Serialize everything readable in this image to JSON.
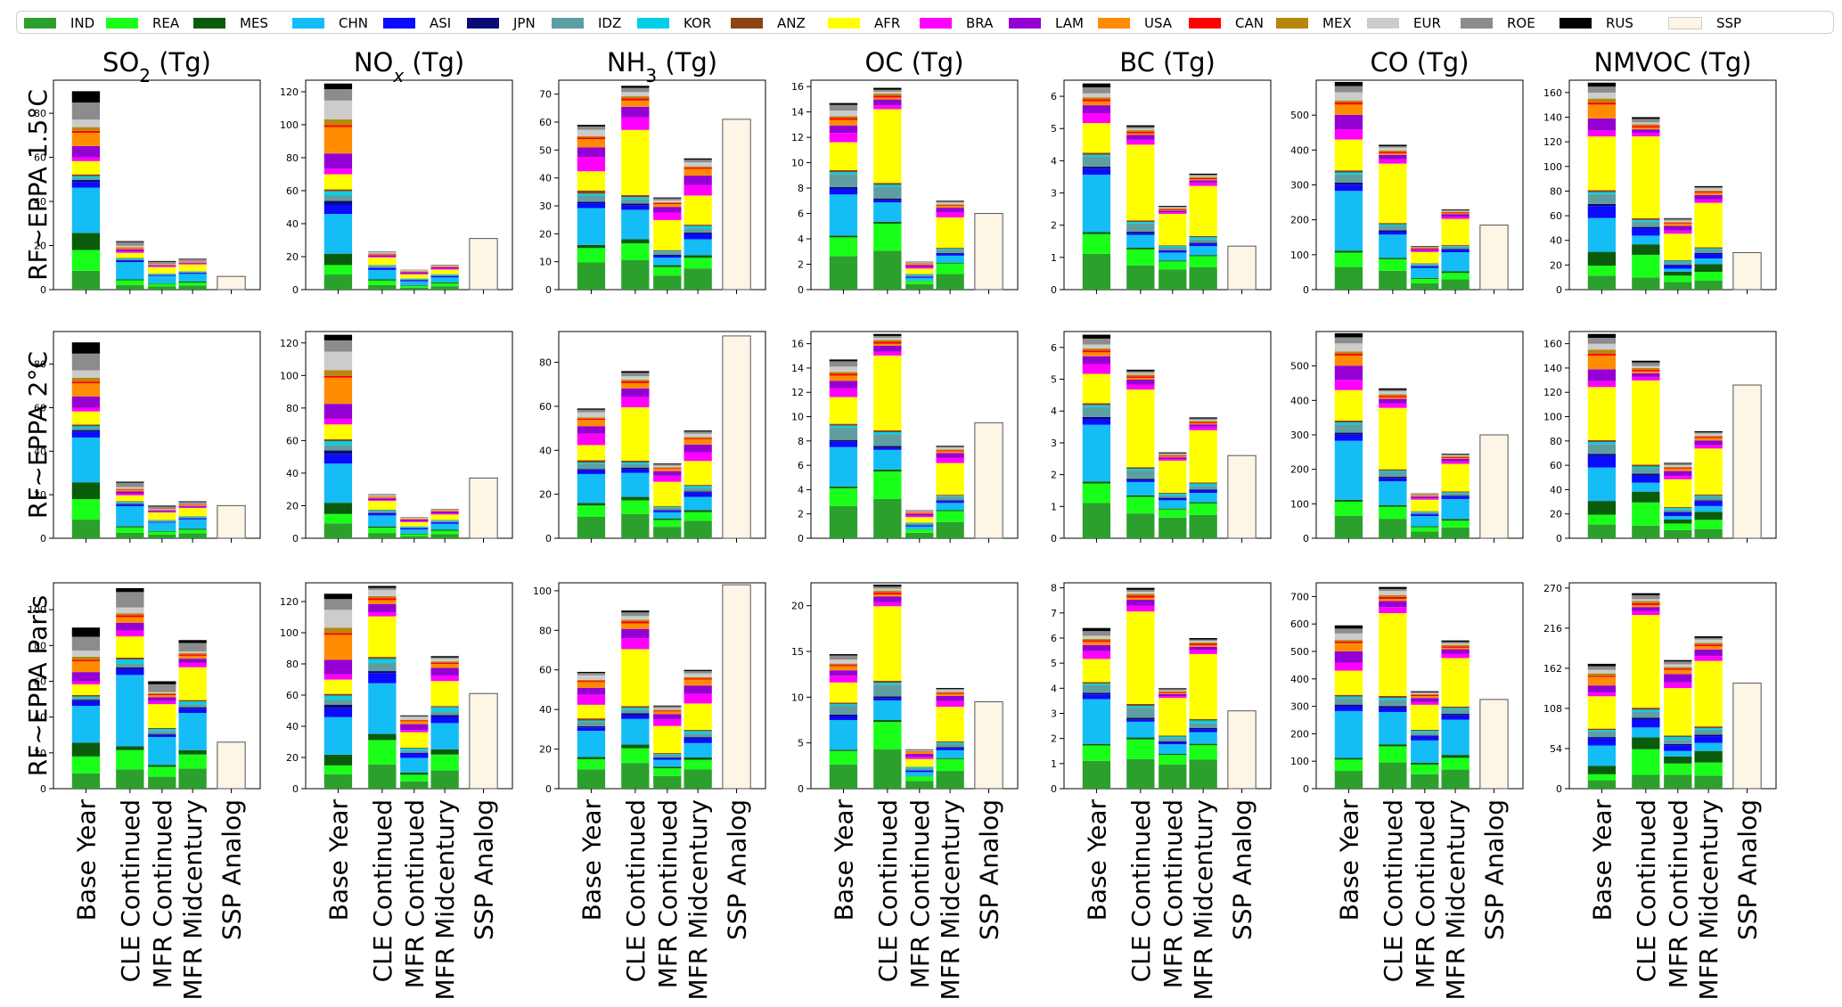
{
  "regions": [
    {
      "code": "IND",
      "color": "#2ca02c"
    },
    {
      "code": "REA",
      "color": "#19ff19"
    },
    {
      "code": "MES",
      "color": "#0a5c0a"
    },
    {
      "code": "CHN",
      "color": "#14bdf5"
    },
    {
      "code": "ASI",
      "color": "#0a0aff"
    },
    {
      "code": "JPN",
      "color": "#0a0a78"
    },
    {
      "code": "IDZ",
      "color": "#5f9ea0"
    },
    {
      "code": "KOR",
      "color": "#00cfe8"
    },
    {
      "code": "ANZ",
      "color": "#8b4513"
    },
    {
      "code": "AFR",
      "color": "#ffff00"
    },
    {
      "code": "BRA",
      "color": "#ff00ff"
    },
    {
      "code": "LAM",
      "color": "#9400d3"
    },
    {
      "code": "USA",
      "color": "#ff8c00"
    },
    {
      "code": "CAN",
      "color": "#ff0000"
    },
    {
      "code": "MEX",
      "color": "#b8860b"
    },
    {
      "code": "EUR",
      "color": "#cccccc"
    },
    {
      "code": "ROE",
      "color": "#8c8c8c"
    },
    {
      "code": "RUS",
      "color": "#000000"
    },
    {
      "code": "SSP",
      "color": "#fdf5e6"
    }
  ],
  "categories": [
    "Base Year",
    "CLE Continued",
    "MFR Continued",
    "MFR Midcentury",
    "SSP Analog"
  ],
  "row_labels": [
    "RF~EPPA 1.5°C",
    "RF~EPPA 2°C",
    "RF~EPPA Paris"
  ],
  "pollutants": [
    {
      "id": "so2",
      "name": "SO",
      "sub": "2",
      "unit": " (Tg)"
    },
    {
      "id": "nox",
      "name": "NO",
      "sub": "x",
      "unit": " (Tg)"
    },
    {
      "id": "nh3",
      "name": "NH",
      "sub": "3",
      "unit": " (Tg)"
    },
    {
      "id": "oc",
      "name": "OC",
      "sub": "",
      "unit": " (Tg)"
    },
    {
      "id": "bc",
      "name": "BC",
      "sub": "",
      "unit": " (Tg)"
    },
    {
      "id": "co",
      "name": "CO",
      "sub": "",
      "unit": " (Tg)"
    },
    {
      "id": "nmvoc",
      "name": "NMVOC",
      "sub": "",
      "unit": " (Tg)"
    }
  ],
  "chart_data": {
    "type": "bar",
    "stacked": true,
    "legend_position": "top",
    "categories": [
      "Base Year",
      "CLE Continued",
      "MFR Continued",
      "MFR Midcentury",
      "SSP Analog"
    ],
    "series_order": [
      "IND",
      "REA",
      "MES",
      "CHN",
      "ASI",
      "JPN",
      "IDZ",
      "KOR",
      "ANZ",
      "AFR",
      "BRA",
      "LAM",
      "USA",
      "CAN",
      "MEX",
      "EUR",
      "ROE",
      "RUS"
    ],
    "panels": [
      [
        {
          "ylim": [
            0,
            95
          ],
          "yticks": [
            0,
            20,
            40,
            60,
            80
          ],
          "totals": [
            90,
            22,
            13,
            14
          ],
          "ssp": 6
        },
        {
          "ylim": [
            0,
            127
          ],
          "yticks": [
            0,
            20,
            40,
            60,
            80,
            100,
            120
          ],
          "totals": [
            125,
            23,
            12,
            15
          ],
          "ssp": 31
        },
        {
          "ylim": [
            0,
            75
          ],
          "yticks": [
            0,
            10,
            20,
            30,
            40,
            50,
            60,
            70
          ],
          "totals": [
            59,
            73,
            33,
            47
          ],
          "ssp": 61
        },
        {
          "ylim": [
            0,
            16.5
          ],
          "yticks": [
            0,
            2,
            4,
            6,
            8,
            10,
            12,
            14,
            16
          ],
          "totals": [
            14.7,
            15.9,
            2.2,
            7.0
          ],
          "ssp": 6
        },
        {
          "ylim": [
            0,
            6.5
          ],
          "yticks": [
            0,
            1,
            2,
            3,
            4,
            5,
            6
          ],
          "totals": [
            6.4,
            5.1,
            2.6,
            3.6
          ],
          "ssp": 1.35
        },
        {
          "ylim": [
            0,
            600
          ],
          "yticks": [
            0,
            100,
            200,
            300,
            400,
            500
          ],
          "totals": [
            595,
            415,
            125,
            230
          ],
          "ssp": 185
        },
        {
          "ylim": [
            0,
            170
          ],
          "yticks": [
            0,
            20,
            40,
            60,
            80,
            100,
            120,
            140,
            160
          ],
          "totals": [
            168,
            140,
            58,
            84
          ],
          "ssp": 30
        }
      ],
      [
        {
          "ylim": [
            0,
            95
          ],
          "yticks": [
            0,
            20,
            40,
            60,
            80
          ],
          "totals": [
            90,
            26,
            15,
            17
          ],
          "ssp": 15
        },
        {
          "ylim": [
            0,
            127
          ],
          "yticks": [
            0,
            20,
            40,
            60,
            80,
            100,
            120
          ],
          "totals": [
            125,
            27,
            13,
            18
          ],
          "ssp": 37
        },
        {
          "ylim": [
            0,
            94
          ],
          "yticks": [
            0,
            20,
            40,
            60,
            80
          ],
          "totals": [
            59,
            76,
            34,
            49
          ],
          "ssp": 92
        },
        {
          "ylim": [
            0,
            17
          ],
          "yticks": [
            0,
            2,
            4,
            6,
            8,
            10,
            12,
            14,
            16
          ],
          "totals": [
            14.7,
            16.8,
            2.3,
            7.6
          ],
          "ssp": 9.5
        },
        {
          "ylim": [
            0,
            6.5
          ],
          "yticks": [
            0,
            1,
            2,
            3,
            4,
            5,
            6
          ],
          "totals": [
            6.4,
            5.3,
            2.7,
            3.8
          ],
          "ssp": 2.6
        },
        {
          "ylim": [
            0,
            600
          ],
          "yticks": [
            0,
            100,
            200,
            300,
            400,
            500
          ],
          "totals": [
            595,
            435,
            130,
            245
          ],
          "ssp": 300
        },
        {
          "ylim": [
            0,
            170
          ],
          "yticks": [
            0,
            20,
            40,
            60,
            80,
            100,
            120,
            140,
            160
          ],
          "totals": [
            168,
            146,
            62,
            88
          ],
          "ssp": 126
        }
      ],
      [
        {
          "ylim": [
            0,
            115
          ],
          "yticks": [
            0,
            20,
            40,
            60,
            80,
            100
          ],
          "totals": [
            90,
            112,
            60,
            83
          ],
          "ssp": 26
        },
        {
          "ylim": [
            0,
            132
          ],
          "yticks": [
            0,
            20,
            40,
            60,
            80,
            100,
            120
          ],
          "totals": [
            125,
            130,
            47,
            85
          ],
          "ssp": 61
        },
        {
          "ylim": [
            0,
            104
          ],
          "yticks": [
            0,
            20,
            40,
            60,
            80,
            100
          ],
          "totals": [
            59,
            90,
            42,
            60
          ],
          "ssp": 103
        },
        {
          "ylim": [
            0,
            22.5
          ],
          "yticks": [
            0,
            5,
            10,
            15,
            20
          ],
          "totals": [
            14.7,
            22.3,
            4.3,
            11.0
          ],
          "ssp": 9.5
        },
        {
          "ylim": [
            0,
            8.2
          ],
          "yticks": [
            0,
            1,
            2,
            3,
            4,
            5,
            6,
            7,
            8
          ],
          "totals": [
            6.4,
            8.0,
            4.0,
            6.0
          ],
          "ssp": 3.1
        },
        {
          "ylim": [
            0,
            750
          ],
          "yticks": [
            0,
            100,
            200,
            300,
            400,
            500,
            600,
            700
          ],
          "totals": [
            595,
            735,
            355,
            540
          ],
          "ssp": 325
        },
        {
          "ylim": [
            0,
            277
          ],
          "yticks": [
            0,
            54,
            108,
            162,
            216,
            270
          ],
          "totals": [
            168,
            263,
            173,
            205
          ],
          "ssp": 142
        }
      ]
    ],
    "shares": {
      "so2": {
        "base": [
          10,
          11,
          9,
          24,
          3,
          1,
          1,
          1,
          1,
          7,
          2,
          6,
          7,
          1,
          2,
          4,
          9,
          6
        ],
        "cle": [
          10,
          10,
          2,
          37,
          3,
          1,
          2,
          2,
          1,
          11,
          3,
          4,
          3,
          1,
          1,
          3,
          8,
          2
        ],
        "mfr": [
          12,
          10,
          2,
          28,
          2,
          1,
          3,
          2,
          1,
          24,
          3,
          4,
          2,
          1,
          1,
          1,
          8,
          3
        ],
        "mid": [
          14,
          10,
          3,
          26,
          3,
          1,
          2,
          2,
          1,
          23,
          3,
          3,
          2,
          1,
          1,
          1,
          6,
          2
        ]
      },
      "nox": {
        "base": [
          8,
          5,
          6,
          21,
          5,
          2,
          3,
          2,
          1,
          8,
          3,
          8,
          14,
          1,
          3,
          10,
          6,
          3
        ],
        "cle": [
          12,
          12,
          3,
          25,
          5,
          1,
          4,
          2,
          1,
          20,
          2,
          4,
          2,
          1,
          1,
          3,
          1,
          1
        ],
        "mfr": [
          10,
          9,
          3,
          20,
          6,
          1,
          3,
          3,
          1,
          21,
          3,
          8,
          4,
          1,
          1,
          4,
          1,
          1
        ],
        "mid": [
          14,
          12,
          4,
          20,
          5,
          1,
          3,
          3,
          1,
          19,
          4,
          6,
          3,
          1,
          1,
          2,
          1,
          1
        ]
      },
      "nh3": {
        "base": [
          17,
          9,
          2,
          23,
          3,
          1,
          4,
          1,
          2,
          12,
          9,
          6,
          5,
          1,
          1,
          4,
          2,
          1
        ],
        "cle": [
          14,
          8,
          2,
          14,
          2,
          1,
          2,
          1,
          1,
          31,
          6,
          5,
          3,
          1,
          1,
          2,
          2,
          1
        ],
        "mfr": [
          15,
          9,
          2,
          8,
          2,
          1,
          3,
          1,
          1,
          32,
          8,
          6,
          3,
          1,
          1,
          2,
          2,
          1
        ],
        "mid": [
          16,
          8,
          2,
          12,
          4,
          1,
          3,
          2,
          1,
          22,
          8,
          7,
          5,
          1,
          1,
          3,
          2,
          1
        ]
      },
      "oc": {
        "base": [
          18,
          10,
          1,
          22,
          3,
          1,
          7,
          1,
          1,
          15,
          5,
          4,
          3,
          1,
          1,
          3,
          3,
          1
        ],
        "cle": [
          20,
          14,
          1,
          10,
          1,
          1,
          6,
          1,
          1,
          38,
          2,
          3,
          1,
          1,
          1,
          1,
          1,
          1
        ],
        "mfr": [
          20,
          12,
          1,
          10,
          4,
          1,
          4,
          4,
          1,
          20,
          6,
          7,
          5,
          1,
          1,
          2,
          2,
          1
        ],
        "mid": [
          18,
          12,
          1,
          8,
          2,
          1,
          4,
          1,
          1,
          35,
          6,
          5,
          2,
          1,
          1,
          2,
          1,
          1
        ]
      },
      "bc": {
        "base": [
          18,
          10,
          1,
          29,
          3,
          1,
          5,
          1,
          1,
          15,
          5,
          4,
          2,
          1,
          1,
          2,
          3,
          2
        ],
        "cle": [
          15,
          10,
          1,
          8,
          1,
          1,
          5,
          1,
          1,
          47,
          3,
          3,
          1,
          1,
          1,
          1,
          1,
          1
        ],
        "mfr": [
          25,
          10,
          1,
          10,
          2,
          1,
          3,
          2,
          1,
          39,
          2,
          2,
          1,
          1,
          1,
          1,
          1,
          1
        ],
        "mid": [
          20,
          10,
          1,
          8,
          2,
          1,
          3,
          2,
          1,
          45,
          3,
          2,
          1,
          1,
          1,
          1,
          1,
          1
        ]
      },
      "co": {
        "base": [
          11,
          7,
          1,
          29,
          3,
          1,
          4,
          1,
          1,
          15,
          5,
          7,
          5,
          1,
          1,
          4,
          3,
          2
        ],
        "cle": [
          13,
          8,
          1,
          16,
          2,
          1,
          3,
          1,
          1,
          41,
          3,
          3,
          1,
          1,
          1,
          2,
          1,
          1
        ],
        "mfr": [
          15,
          10,
          2,
          23,
          4,
          1,
          3,
          2,
          1,
          26,
          3,
          4,
          2,
          1,
          1,
          1,
          1,
          1
        ],
        "mid": [
          13,
          8,
          2,
          24,
          3,
          1,
          3,
          1,
          1,
          33,
          3,
          3,
          1,
          1,
          1,
          1,
          1,
          1
        ]
      },
      "nmvoc": {
        "base": [
          7,
          5,
          7,
          17,
          6,
          1,
          5,
          1,
          1,
          27,
          3,
          6,
          7,
          1,
          2,
          3,
          3,
          2
        ],
        "cle": [
          7,
          13,
          6,
          5,
          4,
          1,
          3,
          1,
          1,
          47,
          2,
          2,
          1,
          1,
          1,
          1,
          2,
          1
        ],
        "mfr": [
          10,
          8,
          5,
          4,
          4,
          1,
          3,
          2,
          1,
          34,
          4,
          6,
          3,
          1,
          1,
          2,
          2,
          1
        ],
        "mid": [
          8,
          8,
          7,
          5,
          4,
          1,
          3,
          1,
          1,
          40,
          3,
          4,
          2,
          1,
          1,
          2,
          1,
          1
        ]
      }
    }
  }
}
